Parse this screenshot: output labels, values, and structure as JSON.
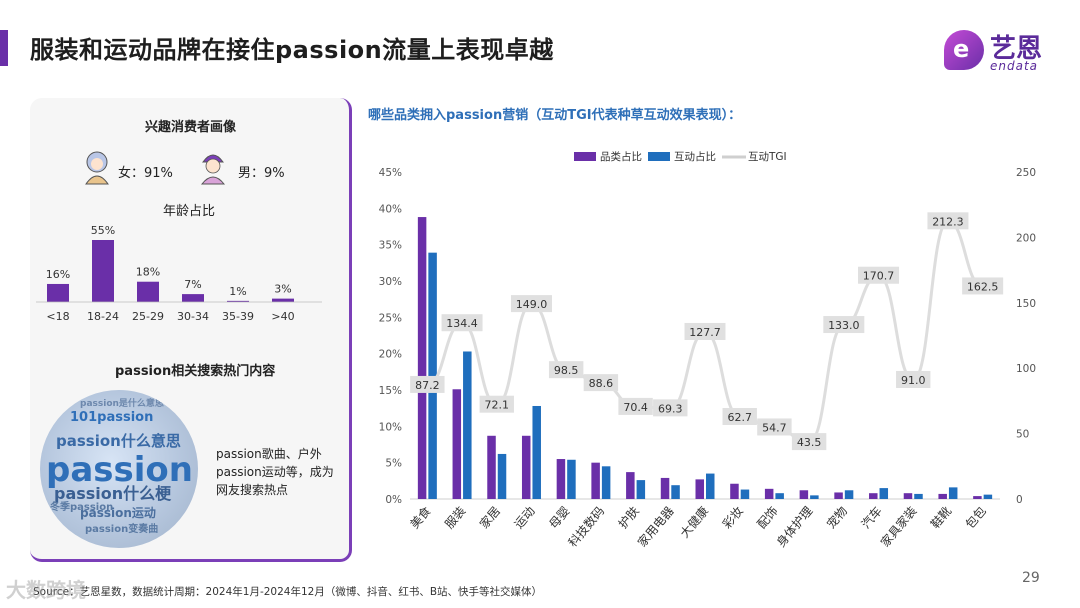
{
  "header": {
    "title": "服装和运动品牌在接住passion流量上表现卓越",
    "logo_cn": "艺恩",
    "logo_en": "endata",
    "logo_mark": "e"
  },
  "left_panel": {
    "persona_title": "兴趣消费者画像",
    "female_label": "女：91%",
    "male_label": "男：9%",
    "age_title": "年龄占比",
    "age_groups": [
      "<18",
      "18-24",
      "25-29",
      "30-34",
      "35-39",
      ">40"
    ],
    "age_values": [
      16,
      55,
      18,
      7,
      1,
      3
    ],
    "age_value_labels": [
      "16%",
      "55%",
      "18%",
      "7%",
      "1%",
      "3%"
    ],
    "search_title": "passion相关搜索热门内容",
    "cloud_words": [
      "passion",
      "passion什么梗",
      "passion什么意思",
      "101passion",
      "passion运动",
      "冬季passion",
      "passion变奏曲",
      "passion是什么意思"
    ],
    "note_lines": [
      "passion歌曲、户外",
      "passion运动等，成为",
      "网友搜索热点"
    ]
  },
  "chart_subtitle": "哪些品类拥入passion营销（互动TGI代表种草互动效果表现）：",
  "chart_data": {
    "type": "bar",
    "categories": [
      "美食",
      "服装",
      "家居",
      "运动",
      "母婴",
      "科技数码",
      "护肤",
      "家用电器",
      "大健康",
      "彩妆",
      "配饰",
      "身体护理",
      "宠物",
      "汽车",
      "家具家装",
      "鞋靴",
      "包包"
    ],
    "series": [
      {
        "name": "品类占比",
        "axis": "left",
        "values": [
          38.8,
          15.1,
          8.7,
          8.7,
          5.5,
          5.0,
          3.7,
          2.9,
          2.7,
          2.1,
          1.4,
          1.2,
          0.9,
          0.8,
          0.8,
          0.7,
          0.4
        ]
      },
      {
        "name": "互动占比",
        "axis": "left",
        "values": [
          33.9,
          20.3,
          6.2,
          12.8,
          5.4,
          4.5,
          2.6,
          1.9,
          3.5,
          1.3,
          0.8,
          0.5,
          1.2,
          1.5,
          0.7,
          1.6,
          0.6
        ]
      },
      {
        "name": "互动TGI",
        "axis": "right",
        "type": "line",
        "values": [
          87.2,
          134.4,
          72.1,
          149.0,
          98.5,
          88.6,
          70.4,
          69.3,
          127.7,
          62.7,
          54.7,
          43.5,
          133.0,
          170.7,
          91.0,
          212.3,
          162.5
        ]
      }
    ],
    "tgi_labels": [
      "87.2",
      "134.4",
      "72.1",
      "149.0",
      "98.5",
      "88.6",
      "70.4",
      "69.3",
      "127.7",
      "62.7",
      "54.7",
      "43.5",
      "133.0",
      "170.7",
      "91.0",
      "212.3",
      "162.5"
    ],
    "left_axis_ticks": [
      "0%",
      "5%",
      "10%",
      "15%",
      "20%",
      "25%",
      "30%",
      "35%",
      "40%",
      "45%"
    ],
    "right_axis_ticks": [
      "0",
      "50",
      "100",
      "150",
      "200",
      "250"
    ],
    "ylim_left": [
      0,
      45
    ],
    "ylim_right": [
      0,
      250
    ],
    "colors": {
      "bar1": "#6a2fa8",
      "bar2": "#1f6ebd",
      "line": "#dddddd",
      "label_bg": "#e0e0e0"
    }
  },
  "footer": {
    "source": "Source：艺恩星数，数据统计周期：2024年1月-2024年12月（微博、抖音、红书、B站、快手等社交媒体）",
    "page": "29",
    "watermark": "大数跨境"
  }
}
